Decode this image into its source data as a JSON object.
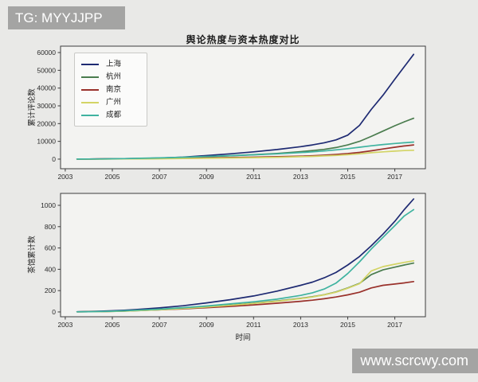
{
  "watermarks": {
    "top_left": "TG: MYYJJPP",
    "bottom_right": "www.scrcwy.com"
  },
  "colors": {
    "figure_background": "#e9e9e7",
    "plot_background": "#f3f3f1",
    "spine": "#3c3c3c",
    "tick_text": "#2b2b2b"
  },
  "chart_data": [
    {
      "type": "line",
      "title": "舆论热度与资本热度对比",
      "ylabel": "累计评论数",
      "xlabel": "",
      "legend_position": "upper left",
      "grid": false,
      "x": [
        2003.5,
        2004,
        2004.5,
        2005,
        2005.5,
        2006,
        2007,
        2008,
        2009,
        2010,
        2011,
        2012,
        2013,
        2013.5,
        2014,
        2014.5,
        2015,
        2015.5,
        2016,
        2016.5,
        2017,
        2017.4,
        2017.8
      ],
      "xticks": [
        2003,
        2005,
        2007,
        2009,
        2011,
        2013,
        2015,
        2017
      ],
      "yticks": [
        0,
        10000,
        20000,
        30000,
        40000,
        50000,
        60000
      ],
      "xlim": [
        2002.8,
        2018.3
      ],
      "ylim": [
        -5400,
        63600
      ],
      "series": [
        {
          "name": "上海",
          "color": "#1e2a72",
          "values": [
            30,
            60,
            100,
            160,
            230,
            320,
            600,
            1100,
            2000,
            3000,
            4100,
            5400,
            7000,
            8000,
            9200,
            10800,
            13500,
            19000,
            28000,
            36000,
            45000,
            52000,
            59000
          ]
        },
        {
          "name": "杭州",
          "color": "#4a7c4e",
          "values": [
            20,
            40,
            70,
            110,
            160,
            220,
            400,
            700,
            1300,
            1900,
            2500,
            3200,
            4200,
            4800,
            5500,
            6500,
            8000,
            10000,
            12800,
            15800,
            18800,
            21000,
            23000
          ]
        },
        {
          "name": "南京",
          "color": "#99312b",
          "values": [
            15,
            60,
            150,
            220,
            270,
            320,
            430,
            560,
            720,
            900,
            1100,
            1350,
            1700,
            1900,
            2200,
            2600,
            3100,
            3800,
            4700,
            5700,
            6700,
            7400,
            8000
          ]
        },
        {
          "name": "广州",
          "color": "#d3d465",
          "values": [
            5,
            15,
            35,
            60,
            90,
            130,
            220,
            340,
            480,
            640,
            820,
            1050,
            1350,
            1550,
            1800,
            2100,
            2500,
            3000,
            3600,
            4100,
            4500,
            4800,
            5000
          ]
        },
        {
          "name": "成都",
          "color": "#3fb3a0",
          "values": [
            20,
            50,
            110,
            200,
            300,
            420,
            700,
            1050,
            1500,
            1950,
            2450,
            3000,
            3700,
            4100,
            4600,
            5200,
            5900,
            6700,
            7500,
            8200,
            8800,
            9200,
            9600
          ]
        }
      ]
    },
    {
      "type": "line",
      "title": "",
      "ylabel": "茶馆累计数",
      "xlabel": "时间",
      "grid": false,
      "x": [
        2003.5,
        2004,
        2004.5,
        2005,
        2005.5,
        2006,
        2007,
        2008,
        2009,
        2010,
        2011,
        2012,
        2013,
        2013.5,
        2014,
        2014.5,
        2015,
        2015.5,
        2016,
        2016.5,
        2017,
        2017.4,
        2017.8
      ],
      "xticks": [
        2003,
        2005,
        2007,
        2009,
        2011,
        2013,
        2015,
        2017
      ],
      "yticks": [
        0,
        200,
        400,
        600,
        800,
        1000
      ],
      "xlim": [
        2002.8,
        2018.3
      ],
      "ylim": [
        -45,
        1112
      ],
      "series": [
        {
          "name": "上海",
          "color": "#1e2a72",
          "values": [
            2,
            4,
            7,
            11,
            16,
            22,
            38,
            58,
            85,
            115,
            150,
            195,
            250,
            280,
            320,
            370,
            440,
            520,
            620,
            730,
            850,
            960,
            1060
          ]
        },
        {
          "name": "杭州",
          "color": "#4a7c4e",
          "values": [
            1,
            2,
            3,
            5,
            8,
            12,
            21,
            33,
            48,
            64,
            82,
            103,
            128,
            143,
            162,
            188,
            225,
            268,
            350,
            395,
            420,
            440,
            458
          ]
        },
        {
          "name": "南京",
          "color": "#99312b",
          "values": [
            1,
            2,
            4,
            6,
            9,
            13,
            20,
            29,
            40,
            52,
            66,
            82,
            100,
            110,
            124,
            140,
            160,
            185,
            225,
            250,
            262,
            272,
            285
          ]
        },
        {
          "name": "广州",
          "color": "#d3d465",
          "values": [
            1,
            2,
            3,
            5,
            8,
            12,
            20,
            32,
            46,
            62,
            80,
            100,
            125,
            140,
            160,
            185,
            222,
            265,
            385,
            425,
            448,
            465,
            480
          ]
        },
        {
          "name": "成都",
          "color": "#3fb3a0",
          "values": [
            1,
            2,
            4,
            7,
            11,
            16,
            26,
            40,
            56,
            75,
            95,
            120,
            155,
            180,
            215,
            270,
            360,
            470,
            590,
            700,
            810,
            900,
            960
          ]
        }
      ]
    }
  ]
}
